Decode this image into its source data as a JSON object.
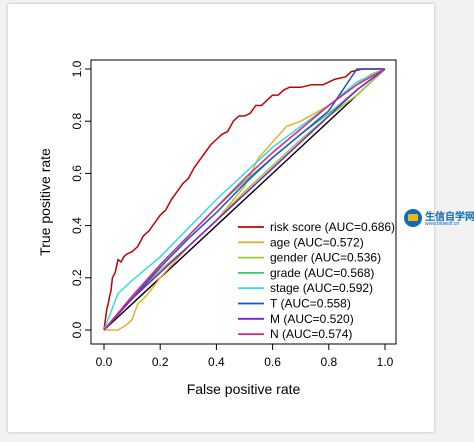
{
  "chart_data": {
    "type": "line",
    "title": "",
    "xlabel": "False positive rate",
    "ylabel": "True positive rate",
    "xlim": [
      0,
      1
    ],
    "ylim": [
      0,
      1
    ],
    "xticks": [
      "0.0",
      "0.2",
      "0.4",
      "0.6",
      "0.8",
      "1.0"
    ],
    "yticks": [
      "0.0",
      "0.2",
      "0.4",
      "0.6",
      "0.8",
      "1.0"
    ],
    "legend_position": "bottom-right",
    "grid": false,
    "reference_line": [
      [
        0,
        0
      ],
      [
        1,
        1
      ]
    ],
    "series": [
      {
        "name": "risk score (AUC=0.686)",
        "color": "#c00000",
        "points": [
          [
            0,
            0
          ],
          [
            0.005,
            0.04
          ],
          [
            0.01,
            0.08
          ],
          [
            0.015,
            0.1
          ],
          [
            0.02,
            0.13
          ],
          [
            0.025,
            0.15
          ],
          [
            0.03,
            0.2
          ],
          [
            0.04,
            0.22
          ],
          [
            0.05,
            0.27
          ],
          [
            0.06,
            0.26
          ],
          [
            0.07,
            0.28
          ],
          [
            0.08,
            0.29
          ],
          [
            0.1,
            0.3
          ],
          [
            0.12,
            0.32
          ],
          [
            0.14,
            0.36
          ],
          [
            0.16,
            0.38
          ],
          [
            0.18,
            0.41
          ],
          [
            0.2,
            0.44
          ],
          [
            0.22,
            0.46
          ],
          [
            0.24,
            0.5
          ],
          [
            0.26,
            0.53
          ],
          [
            0.28,
            0.56
          ],
          [
            0.3,
            0.58
          ],
          [
            0.32,
            0.62
          ],
          [
            0.34,
            0.65
          ],
          [
            0.36,
            0.68
          ],
          [
            0.38,
            0.71
          ],
          [
            0.4,
            0.73
          ],
          [
            0.42,
            0.75
          ],
          [
            0.44,
            0.76
          ],
          [
            0.46,
            0.8
          ],
          [
            0.48,
            0.82
          ],
          [
            0.5,
            0.82
          ],
          [
            0.52,
            0.83
          ],
          [
            0.54,
            0.86
          ],
          [
            0.56,
            0.86
          ],
          [
            0.58,
            0.88
          ],
          [
            0.6,
            0.9
          ],
          [
            0.62,
            0.9
          ],
          [
            0.64,
            0.92
          ],
          [
            0.66,
            0.93
          ],
          [
            0.7,
            0.93
          ],
          [
            0.74,
            0.94
          ],
          [
            0.78,
            0.94
          ],
          [
            0.82,
            0.96
          ],
          [
            0.86,
            0.97
          ],
          [
            0.88,
            0.99
          ],
          [
            0.92,
            1
          ],
          [
            1,
            1
          ]
        ]
      },
      {
        "name": "age (AUC=0.572)",
        "color": "#e6b030",
        "points": [
          [
            0,
            0
          ],
          [
            0.05,
            0
          ],
          [
            0.08,
            0.02
          ],
          [
            0.1,
            0.04
          ],
          [
            0.12,
            0.1
          ],
          [
            0.15,
            0.13
          ],
          [
            0.2,
            0.2
          ],
          [
            0.3,
            0.32
          ],
          [
            0.4,
            0.42
          ],
          [
            0.5,
            0.55
          ],
          [
            0.55,
            0.66
          ],
          [
            0.6,
            0.72
          ],
          [
            0.65,
            0.78
          ],
          [
            0.7,
            0.8
          ],
          [
            0.8,
            0.86
          ],
          [
            0.9,
            0.94
          ],
          [
            0.95,
            0.98
          ],
          [
            1,
            1
          ]
        ]
      },
      {
        "name": "gender (AUC=0.536)",
        "color": "#99cc33",
        "points": [
          [
            0,
            0
          ],
          [
            0.1,
            0.12
          ],
          [
            0.2,
            0.23
          ],
          [
            0.3,
            0.32
          ],
          [
            0.4,
            0.42
          ],
          [
            0.5,
            0.53
          ],
          [
            0.6,
            0.63
          ],
          [
            0.7,
            0.73
          ],
          [
            0.8,
            0.82
          ],
          [
            0.9,
            0.9
          ],
          [
            1,
            1
          ]
        ]
      },
      {
        "name": "grade (AUC=0.568)",
        "color": "#33cc66",
        "points": [
          [
            0,
            0
          ],
          [
            0.1,
            0.12
          ],
          [
            0.2,
            0.25
          ],
          [
            0.3,
            0.36
          ],
          [
            0.4,
            0.47
          ],
          [
            0.5,
            0.57
          ],
          [
            0.6,
            0.66
          ],
          [
            0.7,
            0.75
          ],
          [
            0.8,
            0.83
          ],
          [
            0.9,
            0.92
          ],
          [
            1,
            1
          ]
        ]
      },
      {
        "name": "stage (AUC=0.592)",
        "color": "#33dddd",
        "points": [
          [
            0,
            0
          ],
          [
            0.05,
            0.14
          ],
          [
            0.1,
            0.19
          ],
          [
            0.2,
            0.28
          ],
          [
            0.3,
            0.39
          ],
          [
            0.4,
            0.5
          ],
          [
            0.5,
            0.6
          ],
          [
            0.6,
            0.7
          ],
          [
            0.7,
            0.78
          ],
          [
            0.8,
            0.86
          ],
          [
            0.9,
            0.95
          ],
          [
            1,
            1
          ]
        ]
      },
      {
        "name": "T (AUC=0.558)",
        "color": "#1f4fd1",
        "points": [
          [
            0,
            0
          ],
          [
            0.1,
            0.12
          ],
          [
            0.2,
            0.24
          ],
          [
            0.3,
            0.35
          ],
          [
            0.4,
            0.45
          ],
          [
            0.5,
            0.56
          ],
          [
            0.6,
            0.66
          ],
          [
            0.7,
            0.75
          ],
          [
            0.8,
            0.84
          ],
          [
            0.9,
            1
          ],
          [
            1,
            1
          ]
        ]
      },
      {
        "name": "M (AUC=0.520)",
        "color": "#7a1fd1",
        "points": [
          [
            0,
            0
          ],
          [
            0.1,
            0.12
          ],
          [
            0.2,
            0.22
          ],
          [
            0.3,
            0.32
          ],
          [
            0.4,
            0.42
          ],
          [
            0.5,
            0.52
          ],
          [
            0.6,
            0.62
          ],
          [
            0.7,
            0.72
          ],
          [
            0.8,
            0.82
          ],
          [
            0.9,
            0.92
          ],
          [
            1,
            1
          ]
        ]
      },
      {
        "name": "N (AUC=0.574)",
        "color": "#e0208a",
        "points": [
          [
            0,
            0
          ],
          [
            0.1,
            0.13
          ],
          [
            0.2,
            0.25
          ],
          [
            0.3,
            0.36
          ],
          [
            0.4,
            0.47
          ],
          [
            0.5,
            0.58
          ],
          [
            0.6,
            0.68
          ],
          [
            0.7,
            0.77
          ],
          [
            0.8,
            0.86
          ],
          [
            0.9,
            0.94
          ],
          [
            1,
            1
          ]
        ]
      }
    ]
  },
  "watermark": {
    "name": "生信自学网",
    "url": "www.biowolf.cn"
  }
}
